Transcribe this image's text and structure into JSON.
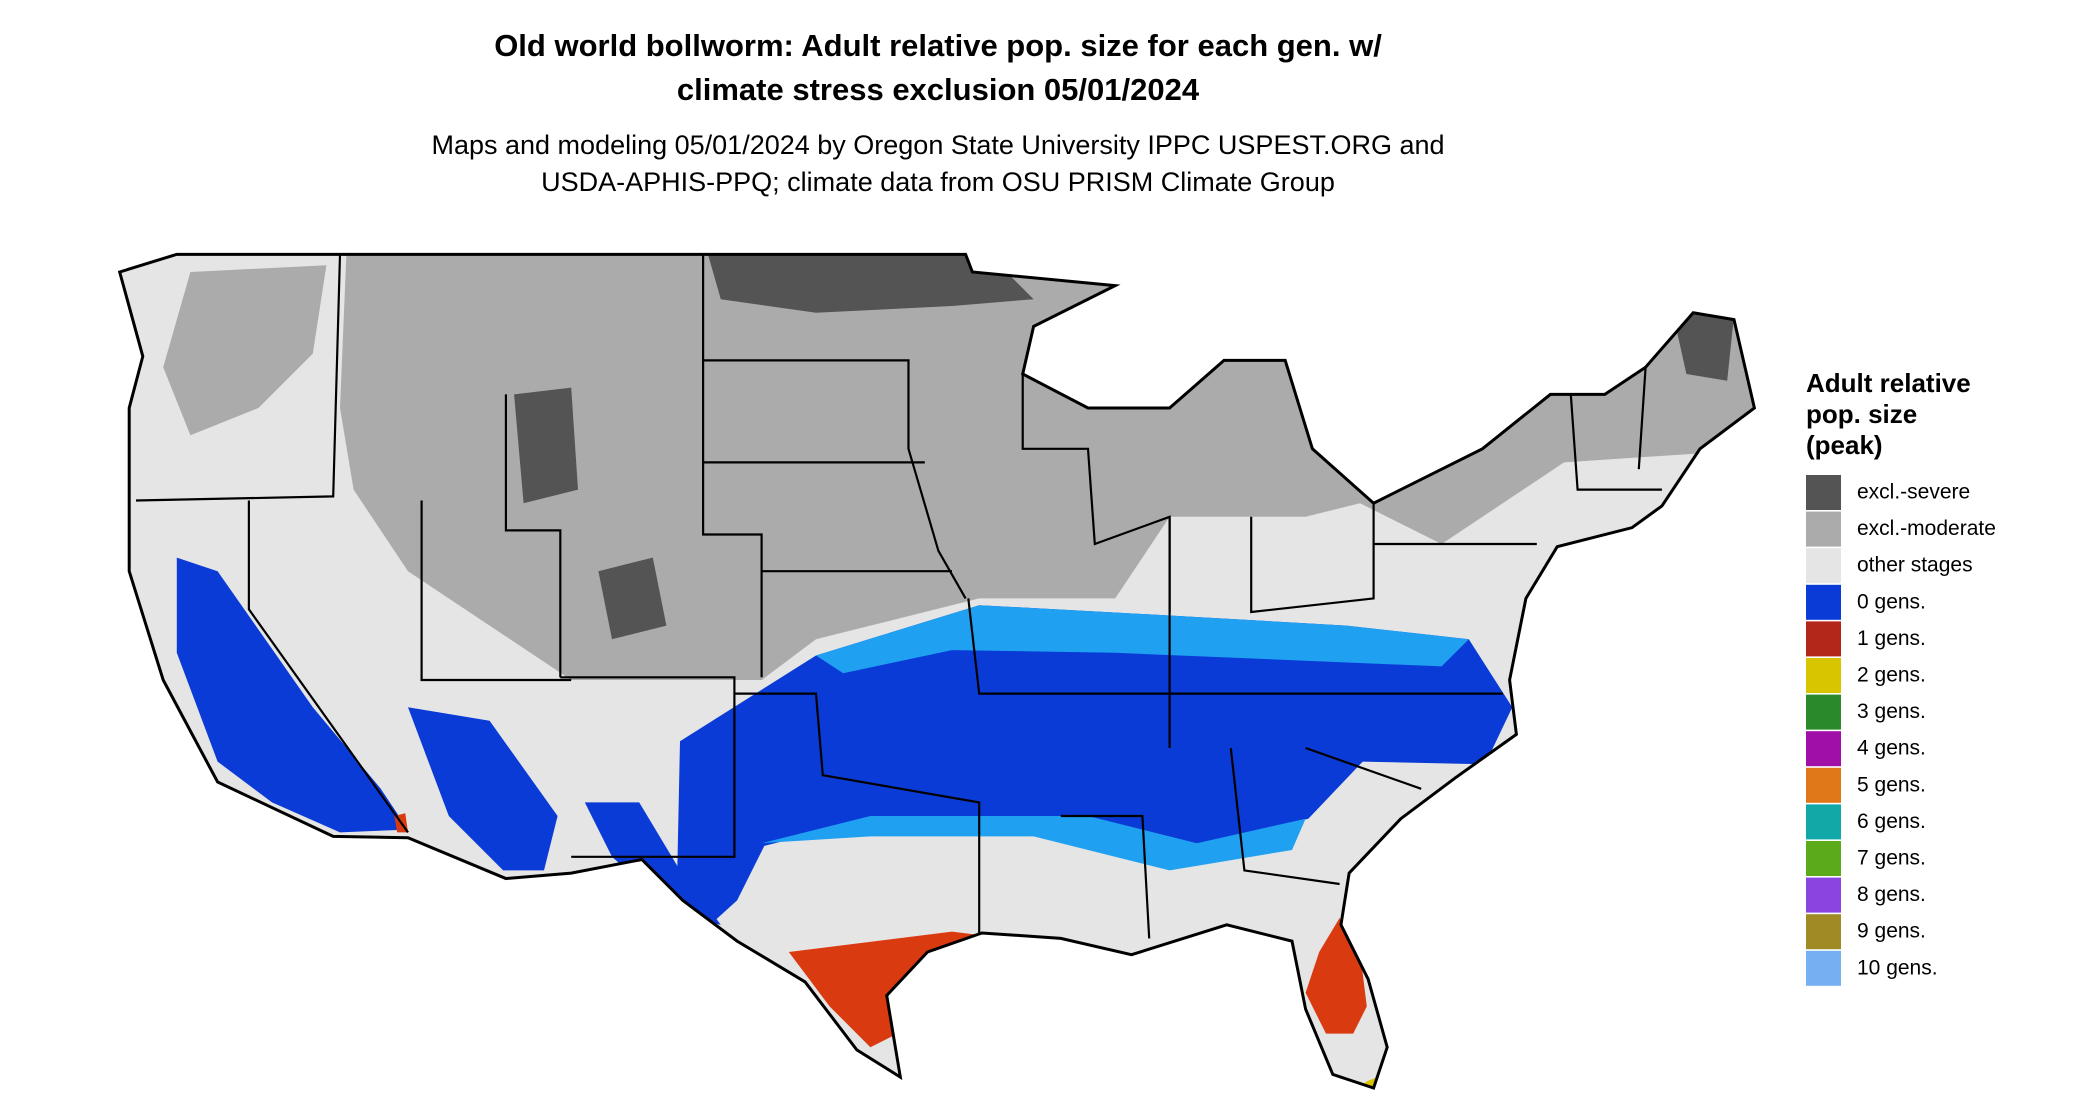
{
  "header": {
    "title": [
      "Old world bollworm: Adult relative pop. size for each gen. w/",
      "climate stress exclusion 05/01/2024"
    ],
    "subtitle": [
      "Maps and modeling 05/01/2024 by Oregon State University IPPC USPEST.ORG and",
      "USDA-APHIS-PPQ; climate data from OSU PRISM Climate Group"
    ]
  },
  "legend": {
    "title": [
      "Adult relative",
      "pop. size",
      "(peak)"
    ],
    "items": [
      {
        "label": "excl.-severe",
        "color": "#545454"
      },
      {
        "label": "excl.-moderate",
        "color": "#ababab"
      },
      {
        "label": "other stages",
        "color": "#e5e5e5"
      },
      {
        "label": "0 gens.",
        "color": "#0a3bd6"
      },
      {
        "label": "1 gens.",
        "color": "#b3261a"
      },
      {
        "label": "2 gens.",
        "color": "#d9c400"
      },
      {
        "label": "3 gens.",
        "color": "#2a8a2a"
      },
      {
        "label": "4 gens.",
        "color": "#a010a8"
      },
      {
        "label": "5 gens.",
        "color": "#e0781a"
      },
      {
        "label": "6 gens.",
        "color": "#12a8a8"
      },
      {
        "label": "7 gens.",
        "color": "#5aaa1a"
      },
      {
        "label": "8 gens.",
        "color": "#8a44e0"
      },
      {
        "label": "9 gens.",
        "color": "#a08a26"
      },
      {
        "label": "10 gens.",
        "color": "#76b0f2"
      }
    ]
  }
}
